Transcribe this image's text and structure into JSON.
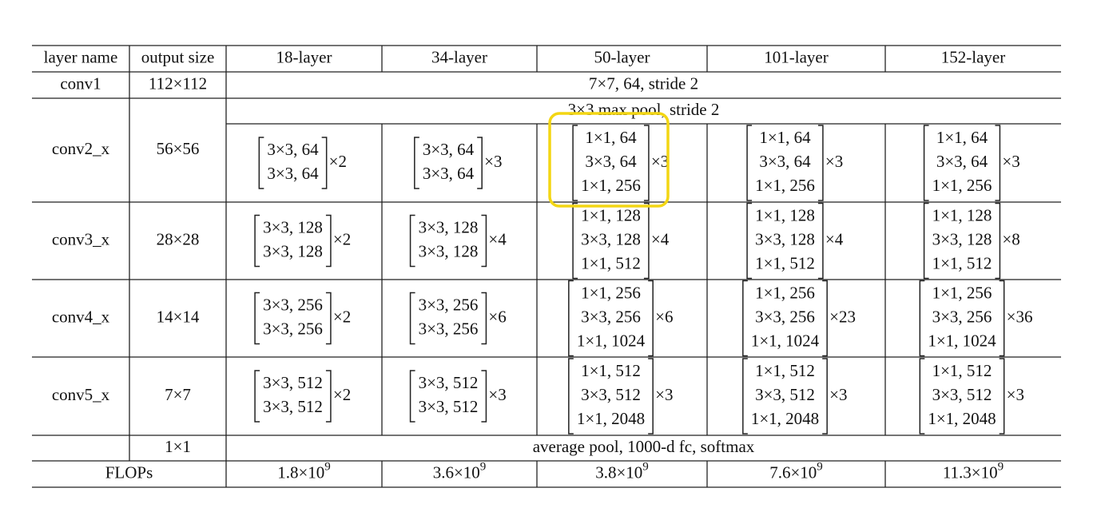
{
  "table": {
    "columns": [
      "layer name",
      "output size",
      "18-layer",
      "34-layer",
      "50-layer",
      "101-layer",
      "152-layer"
    ],
    "rows": [
      {
        "layer": "conv1",
        "output": "112×112",
        "spanning": "7×7, 64, stride 2"
      },
      {
        "layer": "conv2_x",
        "output": "56×56",
        "spanning": "3×3 max pool, stride 2",
        "blocks": [
          {
            "lines": [
              "3×3, 64",
              "3×3, 64"
            ],
            "repeat": "×2"
          },
          {
            "lines": [
              "3×3, 64",
              "3×3, 64"
            ],
            "repeat": "×3"
          },
          {
            "lines": [
              "1×1, 64",
              "3×3, 64",
              "1×1, 256"
            ],
            "repeat": "×3"
          },
          {
            "lines": [
              "1×1, 64",
              "3×3, 64",
              "1×1, 256"
            ],
            "repeat": "×3"
          },
          {
            "lines": [
              "1×1, 64",
              "3×3, 64",
              "1×1, 256"
            ],
            "repeat": "×3"
          }
        ]
      },
      {
        "layer": "conv3_x",
        "output": "28×28",
        "blocks": [
          {
            "lines": [
              "3×3, 128",
              "3×3, 128"
            ],
            "repeat": "×2"
          },
          {
            "lines": [
              "3×3, 128",
              "3×3, 128"
            ],
            "repeat": "×4"
          },
          {
            "lines": [
              "1×1, 128",
              "3×3, 128",
              "1×1, 512"
            ],
            "repeat": "×4"
          },
          {
            "lines": [
              "1×1, 128",
              "3×3, 128",
              "1×1, 512"
            ],
            "repeat": "×4"
          },
          {
            "lines": [
              "1×1, 128",
              "3×3, 128",
              "1×1, 512"
            ],
            "repeat": "×8"
          }
        ]
      },
      {
        "layer": "conv4_x",
        "output": "14×14",
        "blocks": [
          {
            "lines": [
              "3×3, 256",
              "3×3, 256"
            ],
            "repeat": "×2"
          },
          {
            "lines": [
              "3×3, 256",
              "3×3, 256"
            ],
            "repeat": "×6"
          },
          {
            "lines": [
              "1×1, 256",
              "3×3, 256",
              "1×1, 1024"
            ],
            "repeat": "×6"
          },
          {
            "lines": [
              "1×1, 256",
              "3×3, 256",
              "1×1, 1024"
            ],
            "repeat": "×23"
          },
          {
            "lines": [
              "1×1, 256",
              "3×3, 256",
              "1×1, 1024"
            ],
            "repeat": "×36"
          }
        ]
      },
      {
        "layer": "conv5_x",
        "output": "7×7",
        "blocks": [
          {
            "lines": [
              "3×3, 512",
              "3×3, 512"
            ],
            "repeat": "×2"
          },
          {
            "lines": [
              "3×3, 512",
              "3×3, 512"
            ],
            "repeat": "×3"
          },
          {
            "lines": [
              "1×1, 512",
              "3×3, 512",
              "1×1, 2048"
            ],
            "repeat": "×3"
          },
          {
            "lines": [
              "1×1, 512",
              "3×3, 512",
              "1×1, 2048"
            ],
            "repeat": "×3"
          },
          {
            "lines": [
              "1×1, 512",
              "3×3, 512",
              "1×1, 2048"
            ],
            "repeat": "×3"
          }
        ]
      },
      {
        "output": "1×1",
        "spanning": "average pool, 1000-d fc, softmax"
      },
      {
        "label": "FLOPs",
        "flops": [
          {
            "mantissa": "1.8×10",
            "exponent": "9"
          },
          {
            "mantissa": "3.6×10",
            "exponent": "9"
          },
          {
            "mantissa": "3.8×10",
            "exponent": "9"
          },
          {
            "mantissa": "7.6×10",
            "exponent": "9"
          },
          {
            "mantissa": "11.3×10",
            "exponent": "9"
          }
        ]
      }
    ]
  }
}
